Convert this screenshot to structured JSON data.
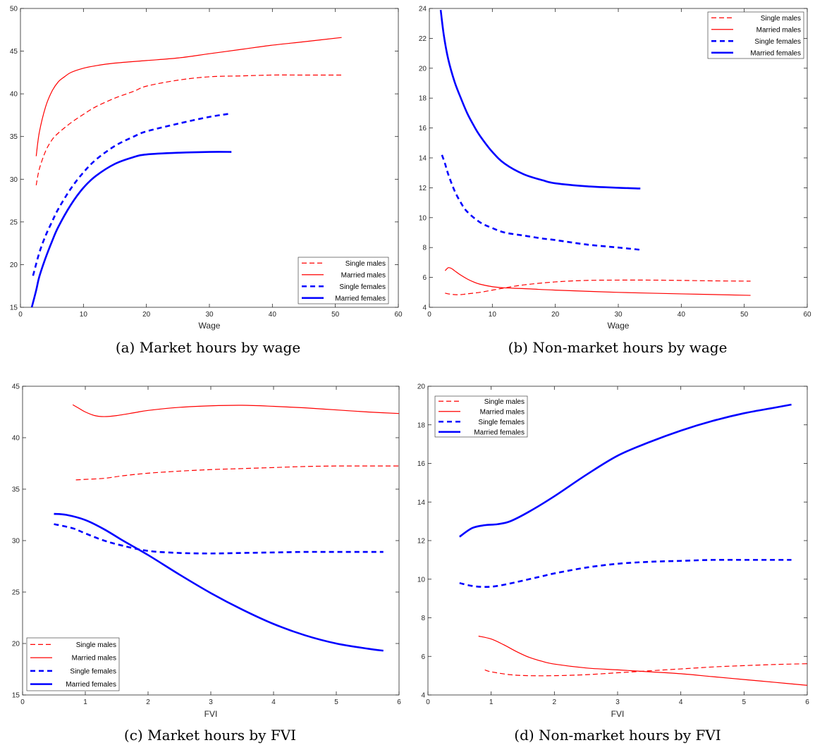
{
  "chart_data": [
    {
      "type": "line",
      "caption": "(a) Market hours by wage",
      "xlabel": "Wage",
      "xlim": [
        0,
        60
      ],
      "ylim": [
        15,
        50
      ],
      "xticks": [
        "0",
        "10",
        "20",
        "30",
        "40",
        "50",
        "60"
      ],
      "yticks": [
        "15",
        "20",
        "25",
        "30",
        "35",
        "40",
        "45",
        "50"
      ],
      "legend_position": "bottom-right",
      "series": [
        {
          "name": "Single males",
          "color": "#ff0000",
          "style": "dash-thin",
          "x": [
            2.5,
            3,
            4,
            5,
            6,
            8,
            10,
            12,
            15,
            18,
            20,
            25,
            30,
            35,
            40,
            45,
            51
          ],
          "y": [
            29.3,
            31.2,
            33.3,
            34.6,
            35.4,
            36.6,
            37.6,
            38.5,
            39.5,
            40.3,
            40.9,
            41.6,
            42.0,
            42.1,
            42.2,
            42.2,
            42.2
          ]
        },
        {
          "name": "Married males",
          "color": "#ff0000",
          "style": "solid-thin",
          "x": [
            2.5,
            3,
            4,
            5,
            6,
            7,
            8,
            10,
            12,
            15,
            20,
            25,
            30,
            35,
            40,
            45,
            51
          ],
          "y": [
            32.7,
            35.5,
            38.5,
            40.3,
            41.4,
            42.0,
            42.5,
            43.0,
            43.3,
            43.6,
            43.9,
            44.2,
            44.7,
            45.2,
            45.7,
            46.1,
            46.6
          ]
        },
        {
          "name": "Single females",
          "color": "#0000ff",
          "style": "dash-thick",
          "x": [
            2,
            3,
            4,
            5,
            6,
            8,
            10,
            12,
            15,
            18,
            20,
            25,
            30,
            33.5
          ],
          "y": [
            18.7,
            21.4,
            23.4,
            25.0,
            26.5,
            28.9,
            30.8,
            32.3,
            33.9,
            35.0,
            35.6,
            36.5,
            37.3,
            37.7
          ]
        },
        {
          "name": "Married females",
          "color": "#0000ff",
          "style": "solid-thick",
          "x": [
            1.8,
            2.5,
            3,
            4,
            5,
            6,
            8,
            10,
            12,
            15,
            18,
            20,
            25,
            30,
            33.5
          ],
          "y": [
            15.0,
            17.0,
            18.6,
            20.8,
            22.7,
            24.4,
            27.0,
            29.0,
            30.4,
            31.8,
            32.6,
            32.9,
            33.1,
            33.2,
            33.2
          ]
        }
      ]
    },
    {
      "type": "line",
      "caption": "(b) Non-market hours by wage",
      "xlabel": "Wage",
      "xlim": [
        0,
        60
      ],
      "ylim": [
        4,
        24
      ],
      "xticks": [
        "0",
        "10",
        "20",
        "30",
        "40",
        "50",
        "60"
      ],
      "yticks": [
        "4",
        "6",
        "8",
        "10",
        "12",
        "14",
        "16",
        "18",
        "20",
        "22",
        "24"
      ],
      "legend_position": "top-right",
      "series": [
        {
          "name": "Single males",
          "color": "#ff0000",
          "style": "dash-thin",
          "x": [
            2.5,
            3,
            4,
            5,
            6,
            8,
            10,
            12,
            15,
            20,
            25,
            30,
            35,
            40,
            45,
            51
          ],
          "y": [
            4.95,
            4.9,
            4.85,
            4.85,
            4.9,
            5.0,
            5.15,
            5.3,
            5.5,
            5.7,
            5.8,
            5.82,
            5.82,
            5.8,
            5.77,
            5.75
          ]
        },
        {
          "name": "Married males",
          "color": "#ff0000",
          "style": "solid-thin",
          "x": [
            2.5,
            3,
            3.5,
            4,
            5,
            6,
            7,
            8,
            10,
            12,
            15,
            20,
            30,
            40,
            51
          ],
          "y": [
            6.45,
            6.65,
            6.6,
            6.45,
            6.15,
            5.9,
            5.7,
            5.55,
            5.38,
            5.3,
            5.25,
            5.15,
            5.0,
            4.9,
            4.8
          ]
        },
        {
          "name": "Single females",
          "color": "#0000ff",
          "style": "dash-thick",
          "x": [
            2,
            2.5,
            3,
            4,
            5,
            6,
            8,
            10,
            12,
            15,
            18,
            20,
            25,
            30,
            33.5
          ],
          "y": [
            14.2,
            13.6,
            12.9,
            11.8,
            11.0,
            10.4,
            9.7,
            9.3,
            9.0,
            8.8,
            8.6,
            8.5,
            8.2,
            8.0,
            7.85
          ]
        },
        {
          "name": "Married females",
          "color": "#0000ff",
          "style": "solid-thick",
          "x": [
            1.8,
            2.3,
            3,
            4,
            5,
            6,
            7,
            8,
            10,
            12,
            15,
            18,
            20,
            25,
            30,
            33.5
          ],
          "y": [
            23.9,
            22.2,
            20.6,
            19.1,
            18.0,
            17.0,
            16.2,
            15.5,
            14.4,
            13.6,
            12.9,
            12.5,
            12.3,
            12.1,
            12.0,
            11.95
          ]
        }
      ]
    },
    {
      "type": "line",
      "caption": "(c) Market hours by FVI",
      "xlabel": "FVI",
      "xlim": [
        0,
        6
      ],
      "ylim": [
        15,
        45
      ],
      "xticks": [
        "0",
        "1",
        "2",
        "3",
        "4",
        "5",
        "6"
      ],
      "yticks": [
        "15",
        "20",
        "25",
        "30",
        "35",
        "40",
        "45"
      ],
      "legend_position": "bottom-left",
      "series": [
        {
          "name": "Single males",
          "color": "#ff0000",
          "style": "dash-thin",
          "x": [
            0.85,
            1.0,
            1.3,
            1.6,
            2.0,
            2.5,
            3.0,
            3.5,
            4.0,
            4.5,
            5.0,
            5.5,
            6.0
          ],
          "y": [
            35.9,
            35.95,
            36.05,
            36.3,
            36.55,
            36.75,
            36.9,
            37.0,
            37.1,
            37.2,
            37.25,
            37.25,
            37.25
          ]
        },
        {
          "name": "Married males",
          "color": "#ff0000",
          "style": "solid-thin",
          "x": [
            0.8,
            0.9,
            1.0,
            1.15,
            1.3,
            1.5,
            1.8,
            2.0,
            2.5,
            3.0,
            3.5,
            4.0,
            4.5,
            5.0,
            5.5,
            6.0
          ],
          "y": [
            43.2,
            42.85,
            42.5,
            42.15,
            42.05,
            42.15,
            42.45,
            42.65,
            42.95,
            43.1,
            43.15,
            43.05,
            42.9,
            42.7,
            42.5,
            42.35
          ]
        },
        {
          "name": "Single females",
          "color": "#0000ff",
          "style": "dash-thick",
          "x": [
            0.5,
            0.8,
            1.0,
            1.3,
            1.6,
            2.0,
            2.5,
            3.0,
            3.5,
            4.0,
            4.5,
            5.0,
            5.5,
            5.75
          ],
          "y": [
            31.6,
            31.2,
            30.7,
            30.0,
            29.5,
            29.0,
            28.8,
            28.75,
            28.8,
            28.85,
            28.9,
            28.9,
            28.9,
            28.9
          ]
        },
        {
          "name": "Married females",
          "color": "#0000ff",
          "style": "solid-thick",
          "x": [
            0.5,
            0.7,
            1.0,
            1.3,
            1.6,
            2.0,
            2.5,
            3.0,
            3.5,
            4.0,
            4.5,
            5.0,
            5.5,
            5.75
          ],
          "y": [
            32.6,
            32.5,
            32.0,
            31.1,
            30.0,
            28.6,
            26.7,
            24.9,
            23.3,
            21.9,
            20.8,
            20.0,
            19.5,
            19.3
          ]
        }
      ]
    },
    {
      "type": "line",
      "caption": "(d) Non-market hours by FVI",
      "xlabel": "FVI",
      "xlim": [
        0,
        6
      ],
      "ylim": [
        4,
        20
      ],
      "xticks": [
        "0",
        "1",
        "2",
        "3",
        "4",
        "5",
        "6"
      ],
      "yticks": [
        "4",
        "6",
        "8",
        "10",
        "12",
        "14",
        "16",
        "18",
        "20"
      ],
      "legend_position": "top-left",
      "series": [
        {
          "name": "Single males",
          "color": "#ff0000",
          "style": "dash-thin",
          "x": [
            0.9,
            1.0,
            1.3,
            1.6,
            2.0,
            2.5,
            3.0,
            3.5,
            4.0,
            4.5,
            5.0,
            5.5,
            6.0
          ],
          "y": [
            5.3,
            5.2,
            5.05,
            5.0,
            5.0,
            5.05,
            5.15,
            5.25,
            5.35,
            5.45,
            5.52,
            5.58,
            5.62
          ]
        },
        {
          "name": "Married males",
          "color": "#ff0000",
          "style": "solid-thin",
          "x": [
            0.8,
            1.0,
            1.2,
            1.4,
            1.6,
            1.8,
            2.0,
            2.5,
            3.0,
            3.5,
            4.0,
            4.5,
            5.0,
            5.5,
            6.0
          ],
          "y": [
            7.05,
            6.9,
            6.6,
            6.25,
            5.95,
            5.75,
            5.6,
            5.4,
            5.3,
            5.2,
            5.1,
            4.95,
            4.8,
            4.65,
            4.5
          ]
        },
        {
          "name": "Single females",
          "color": "#0000ff",
          "style": "dash-thick",
          "x": [
            0.5,
            0.7,
            0.9,
            1.1,
            1.4,
            1.8,
            2.0,
            2.5,
            3.0,
            3.5,
            4.0,
            4.5,
            5.0,
            5.5,
            5.75
          ],
          "y": [
            9.8,
            9.65,
            9.6,
            9.65,
            9.85,
            10.15,
            10.3,
            10.6,
            10.8,
            10.9,
            10.95,
            11.0,
            11.0,
            11.0,
            11.0
          ]
        },
        {
          "name": "Married females",
          "color": "#0000ff",
          "style": "solid-thick",
          "x": [
            0.5,
            0.7,
            0.9,
            1.1,
            1.3,
            1.6,
            2.0,
            2.5,
            3.0,
            3.5,
            4.0,
            4.5,
            5.0,
            5.5,
            5.75
          ],
          "y": [
            12.2,
            12.65,
            12.8,
            12.85,
            13.0,
            13.5,
            14.3,
            15.4,
            16.4,
            17.1,
            17.7,
            18.2,
            18.6,
            18.9,
            19.05
          ]
        }
      ]
    }
  ]
}
